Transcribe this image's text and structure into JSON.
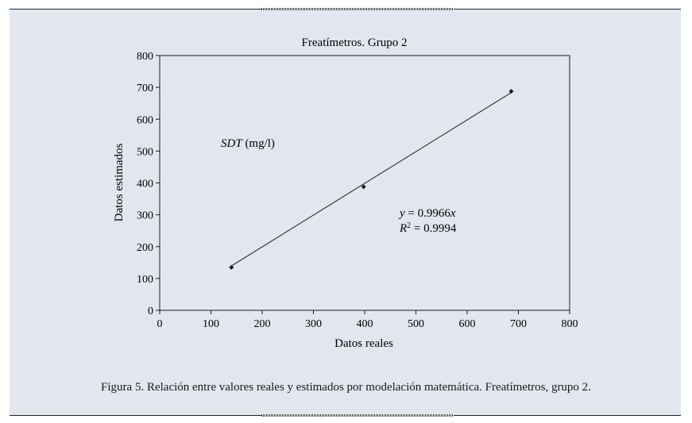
{
  "caption": "Figura 5. Relación entre valores reales y estimados por modelación matemática. Freatímetros, grupo 2.",
  "chart_data": {
    "type": "scatter",
    "title": "Freatímetros. Grupo 2",
    "xlabel": "Datos reales",
    "ylabel": "Datos estimados",
    "xlim": [
      0,
      800
    ],
    "ylim": [
      0,
      800
    ],
    "xticks": [
      0,
      100,
      200,
      300,
      400,
      500,
      600,
      700,
      800
    ],
    "yticks": [
      0,
      100,
      200,
      300,
      400,
      500,
      600,
      700,
      800
    ],
    "grid": false,
    "points": [
      {
        "x": 140,
        "y": 135
      },
      {
        "x": 398,
        "y": 388
      },
      {
        "x": 686,
        "y": 688
      }
    ],
    "trendline": {
      "slope": 0.9966,
      "intercept": 0,
      "x_start": 140,
      "x_end": 686
    },
    "annotations": {
      "variable_italic": "SDT",
      "variable_units": " (mg/l)",
      "equation_lhs": "y",
      "equation_mid": " = 0.9966",
      "equation_rhs": "x",
      "r2_symbol": "R",
      "r2_exp": "2",
      "r2_value": " = 0.9994"
    },
    "colors": {
      "axes": "#1a1a1a",
      "line": "#1a1a1a",
      "points": "#1a1a1a",
      "panel": "#e2e6ef"
    }
  }
}
